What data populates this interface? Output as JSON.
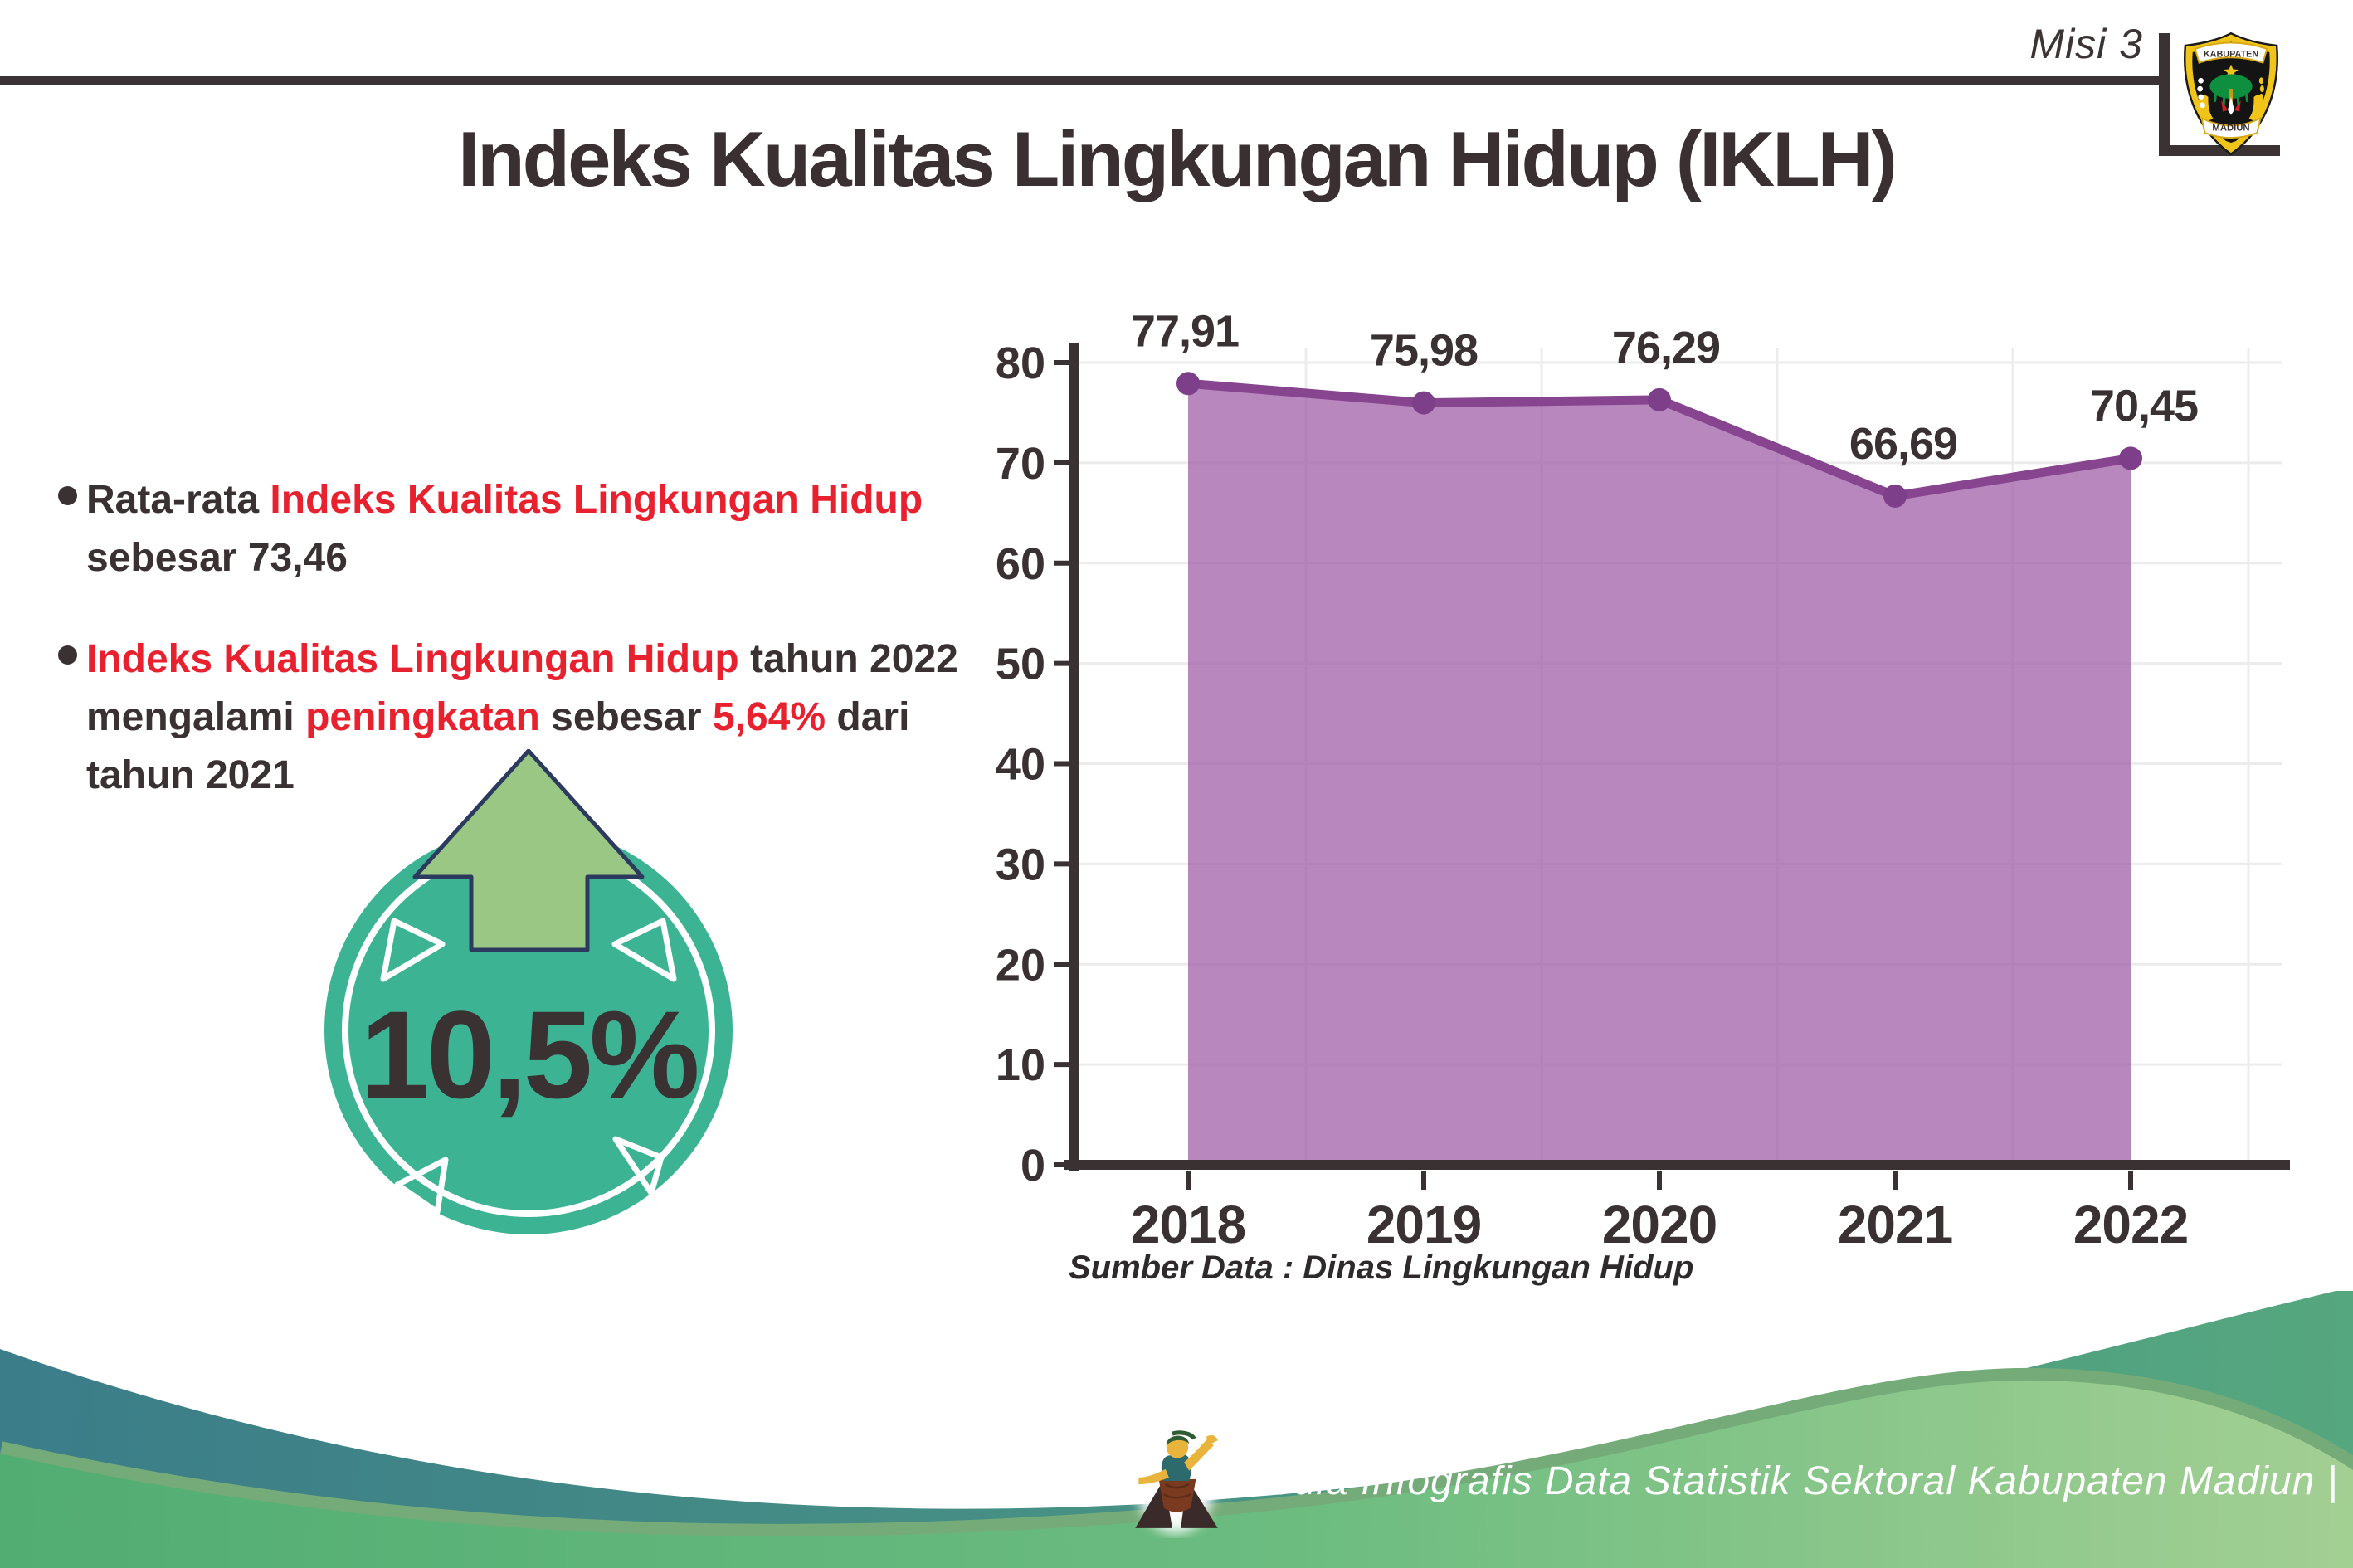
{
  "header": {
    "misi_label": "Misi 3",
    "title": "Indeks Kualitas Lingkungan Hidup (IKLH)",
    "logo": {
      "top_banner": "KABUPATEN",
      "bottom_banner": "MADIUN"
    }
  },
  "bullets": [
    {
      "lines": [
        [
          {
            "text": "Rata-rata ",
            "red": false
          },
          {
            "text": "Indeks Kualitas Lingkungan Hidup",
            "red": true
          }
        ],
        [
          {
            "text": "sebesar 73,46",
            "red": false
          }
        ]
      ]
    },
    {
      "lines": [
        [
          {
            "text": "Indeks Kualitas Lingkungan Hidup",
            "red": true
          },
          {
            "text": " tahun 2022",
            "red": false
          }
        ],
        [
          {
            "text": "mengalami ",
            "red": false
          },
          {
            "text": "peningkatan",
            "red": true
          },
          {
            "text": " sebesar ",
            "red": false
          },
          {
            "text": "5,64%",
            "red": true
          },
          {
            "text": " dari",
            "red": false
          }
        ],
        [
          {
            "text": "tahun 2021",
            "red": false
          }
        ]
      ]
    }
  ],
  "badge": {
    "value": "10,5%",
    "direction": "up"
  },
  "chart_data": {
    "type": "area",
    "title": "",
    "categories": [
      "2018",
      "2019",
      "2020",
      "2021",
      "2022"
    ],
    "values": [
      77.91,
      75.98,
      76.29,
      66.69,
      70.45
    ],
    "point_labels": [
      "77,91",
      "75,98",
      "76,29",
      "66,69",
      "70,45"
    ],
    "yticks": [
      0,
      10,
      20,
      30,
      40,
      50,
      60,
      70,
      80
    ],
    "ylim": [
      0,
      80
    ],
    "grid": true,
    "legend": "none",
    "source": "Sumber Data : Dinas Lingkungan Hidup"
  },
  "footer": {
    "credit": "Media Infografis Data Statistik Sektoral Kabupaten Madiun |"
  },
  "colors": {
    "accent_red": "#e8212e",
    "text_dark": "#3a3133",
    "badge_teal": "#3cb493",
    "arrow_green": "#9bc785",
    "arrow_outline": "#2b3a5e",
    "purple_line": "#86458e",
    "purple_dot": "#7d3e8a",
    "purple_fill": "#9b59a5",
    "axis_dark": "#3a3133",
    "gridline": "#ececec",
    "footer_teal_a": "#3b7d89",
    "footer_teal_b": "#55a77f",
    "footer_green_a": "#52ad73",
    "footer_green_b": "#a3cf93",
    "footer_edge": "#74ab78"
  }
}
